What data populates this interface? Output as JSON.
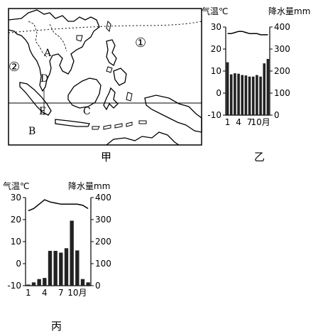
{
  "map": {
    "caption": "甲",
    "labels": {
      "A": "A",
      "B": "B",
      "C": "C",
      "D": "D",
      "E": "E",
      "ocean1": "①",
      "ocean2": "②"
    }
  },
  "charts": {
    "yi": {
      "caption": "乙",
      "temp_title": "气温℃",
      "precip_title": "降水量mm",
      "x_ticks": [
        "1",
        "4",
        "7",
        "10月"
      ]
    },
    "bing": {
      "caption": "丙",
      "temp_title": "气温℃",
      "precip_title": "降水量mm",
      "x_ticks": [
        "1",
        "4",
        "7",
        "10月"
      ]
    }
  },
  "chart_data": [
    {
      "type": "bar",
      "name_hint": "乙",
      "categories": [
        "1",
        "2",
        "3",
        "4",
        "5",
        "6",
        "7",
        "8",
        "9",
        "10",
        "11",
        "12"
      ],
      "series": [
        {
          "values": [
            240,
            185,
            190,
            188,
            182,
            180,
            175,
            175,
            182,
            175,
            235,
            255
          ]
        },
        {
          "values": [
            27,
            27,
            27.5,
            28,
            28,
            27.5,
            27,
            27,
            27,
            26.5,
            26.5,
            26.5
          ]
        }
      ],
      "ylim_temp": [
        -10,
        30
      ],
      "ylim_precip": [
        0,
        400
      ],
      "temp_ticks": [
        -10,
        0,
        10,
        20,
        30
      ],
      "precip_ticks": [
        0,
        100,
        200,
        300,
        400
      ],
      "x_ticks": [
        "1",
        "4",
        "7",
        "10月"
      ]
    },
    {
      "type": "bar",
      "name_hint": "丙",
      "categories": [
        "1",
        "2",
        "3",
        "4",
        "5",
        "6",
        "7",
        "8",
        "9",
        "10",
        "11",
        "12"
      ],
      "series": [
        {
          "values": [
            5,
            15,
            30,
            35,
            158,
            158,
            150,
            170,
            295,
            160,
            30,
            15
          ]
        },
        {
          "values": [
            24,
            25,
            27,
            29,
            28,
            27.5,
            27,
            27,
            27,
            27,
            26.5,
            25
          ]
        }
      ],
      "ylim_temp": [
        -10,
        30
      ],
      "ylim_precip": [
        0,
        400
      ],
      "temp_ticks": [
        -10,
        0,
        10,
        20,
        30
      ],
      "precip_ticks": [
        0,
        100,
        200,
        300,
        400
      ],
      "x_ticks": [
        "1",
        "4",
        "7",
        "10月"
      ]
    }
  ]
}
